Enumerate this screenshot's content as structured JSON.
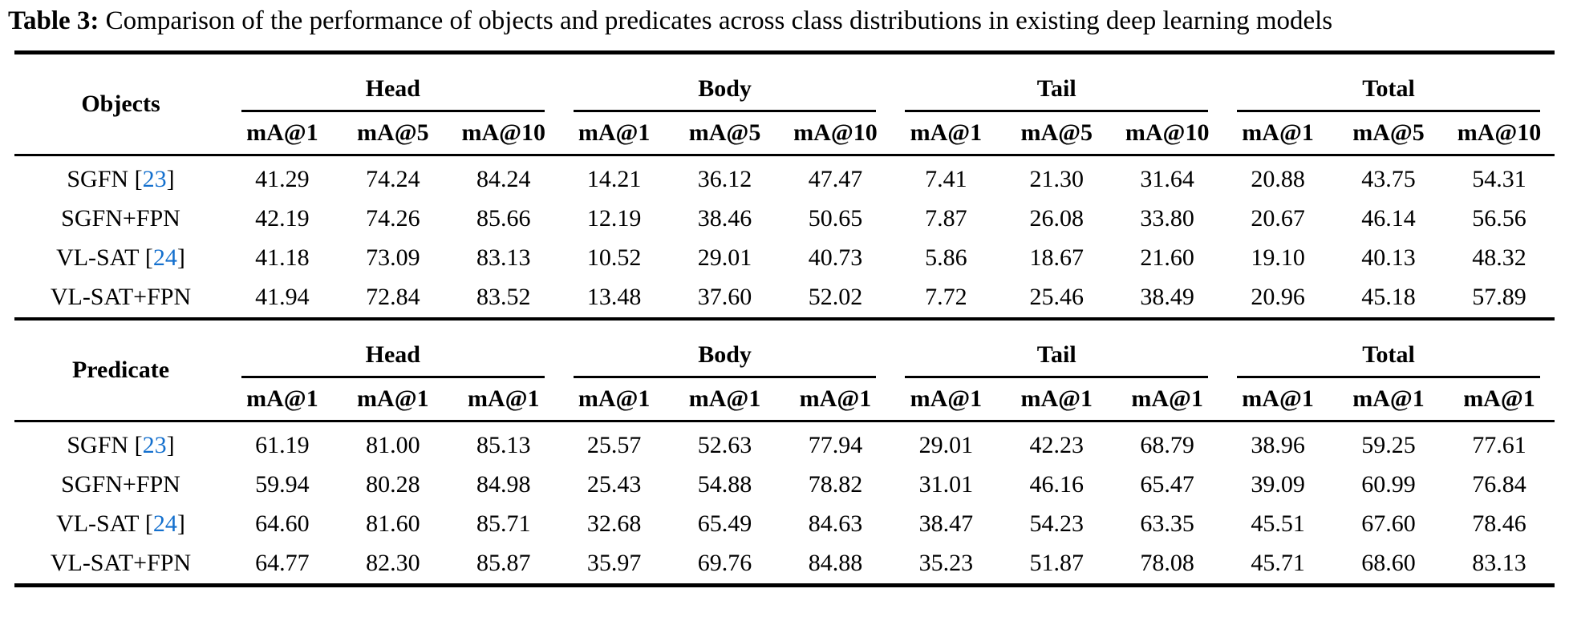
{
  "caption": {
    "label": "Table 3:",
    "text": "Comparison of the performance of objects and predicates across class distributions in existing deep learning models"
  },
  "format": {
    "cite_open": "[",
    "cite_close": "]"
  },
  "colors": {
    "citation_link": "#1470CE",
    "text": "#000000",
    "background": "#ffffff",
    "rule": "#000000"
  },
  "tables": [
    {
      "id": "objects",
      "row_header": "Objects",
      "groups": [
        {
          "label": "Head",
          "subcols": [
            "mA@1",
            "mA@5",
            "mA@10"
          ]
        },
        {
          "label": "Body",
          "subcols": [
            "mA@1",
            "mA@5",
            "mA@10"
          ]
        },
        {
          "label": "Tail",
          "subcols": [
            "mA@1",
            "mA@5",
            "mA@10"
          ]
        },
        {
          "label": "Total",
          "subcols": [
            "mA@1",
            "mA@5",
            "mA@10"
          ]
        }
      ],
      "rows": [
        {
          "model": "SGFN",
          "cite": "23",
          "values": [
            "41.29",
            "74.24",
            "84.24",
            "14.21",
            "36.12",
            "47.47",
            "7.41",
            "21.30",
            "31.64",
            "20.88",
            "43.75",
            "54.31"
          ]
        },
        {
          "model": "SGFN+FPN",
          "cite": null,
          "values": [
            "42.19",
            "74.26",
            "85.66",
            "12.19",
            "38.46",
            "50.65",
            "7.87",
            "26.08",
            "33.80",
            "20.67",
            "46.14",
            "56.56"
          ]
        },
        {
          "model": "VL-SAT",
          "cite": "24",
          "values": [
            "41.18",
            "73.09",
            "83.13",
            "10.52",
            "29.01",
            "40.73",
            "5.86",
            "18.67",
            "21.60",
            "19.10",
            "40.13",
            "48.32"
          ]
        },
        {
          "model": "VL-SAT+FPN",
          "cite": null,
          "values": [
            "41.94",
            "72.84",
            "83.52",
            "13.48",
            "37.60",
            "52.02",
            "7.72",
            "25.46",
            "38.49",
            "20.96",
            "45.18",
            "57.89"
          ]
        }
      ]
    },
    {
      "id": "predicate",
      "row_header": "Predicate",
      "groups": [
        {
          "label": "Head",
          "subcols": [
            "mA@1",
            "mA@1",
            "mA@1"
          ]
        },
        {
          "label": "Body",
          "subcols": [
            "mA@1",
            "mA@1",
            "mA@1"
          ]
        },
        {
          "label": "Tail",
          "subcols": [
            "mA@1",
            "mA@1",
            "mA@1"
          ]
        },
        {
          "label": "Total",
          "subcols": [
            "mA@1",
            "mA@1",
            "mA@1"
          ]
        }
      ],
      "rows": [
        {
          "model": "SGFN",
          "cite": "23",
          "values": [
            "61.19",
            "81.00",
            "85.13",
            "25.57",
            "52.63",
            "77.94",
            "29.01",
            "42.23",
            "68.79",
            "38.96",
            "59.25",
            "77.61"
          ]
        },
        {
          "model": "SGFN+FPN",
          "cite": null,
          "values": [
            "59.94",
            "80.28",
            "84.98",
            "25.43",
            "54.88",
            "78.82",
            "31.01",
            "46.16",
            "65.47",
            "39.09",
            "60.99",
            "76.84"
          ]
        },
        {
          "model": "VL-SAT",
          "cite": "24",
          "values": [
            "64.60",
            "81.60",
            "85.71",
            "32.68",
            "65.49",
            "84.63",
            "38.47",
            "54.23",
            "63.35",
            "45.51",
            "67.60",
            "78.46"
          ]
        },
        {
          "model": "VL-SAT+FPN",
          "cite": null,
          "values": [
            "64.77",
            "82.30",
            "85.87",
            "35.97",
            "69.76",
            "84.88",
            "35.23",
            "51.87",
            "78.08",
            "45.71",
            "68.60",
            "83.13"
          ]
        }
      ]
    }
  ]
}
